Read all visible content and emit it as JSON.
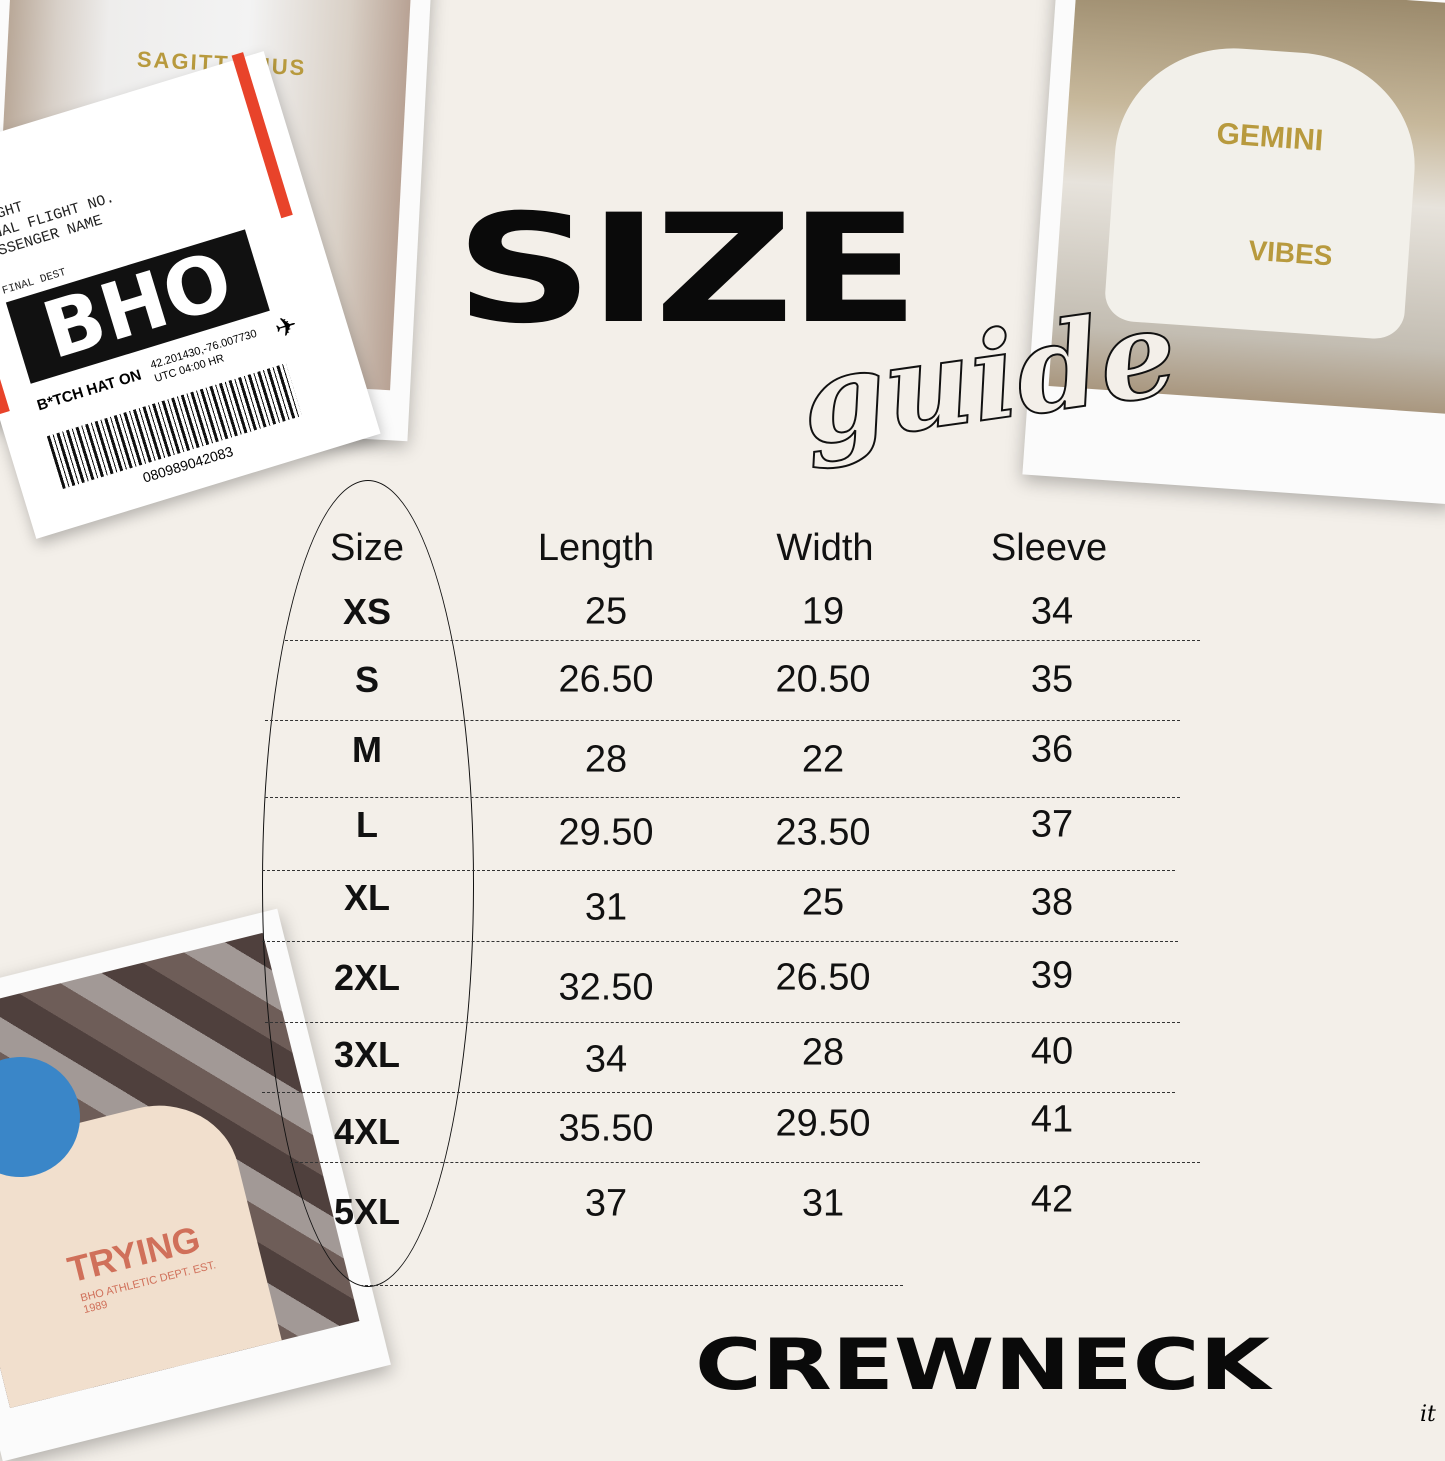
{
  "header": {
    "title_main": "SIZE",
    "title_script": "guide"
  },
  "footer": {
    "product": "CREWNECK",
    "signature": "it"
  },
  "table": {
    "columns": [
      "Size",
      "Length",
      "Width",
      "Sleeve"
    ],
    "rows": [
      {
        "size": "XS",
        "length": "25",
        "width": "19",
        "sleeve": "34"
      },
      {
        "size": "S",
        "length": "26.50",
        "width": "20.50",
        "sleeve": "35"
      },
      {
        "size": "M",
        "length": "28",
        "width": "22",
        "sleeve": "36"
      },
      {
        "size": "L",
        "length": "29.50",
        "width": "23.50",
        "sleeve": "37"
      },
      {
        "size": "XL",
        "length": "31",
        "width": "25",
        "sleeve": "38"
      },
      {
        "size": "2XL",
        "length": "32.50",
        "width": "26.50",
        "sleeve": "39"
      },
      {
        "size": "3XL",
        "length": "34",
        "width": "28",
        "sleeve": "40"
      },
      {
        "size": "4XL",
        "length": "35.50",
        "width": "29.50",
        "sleeve": "41"
      },
      {
        "size": "5XL",
        "length": "37",
        "width": "31",
        "sleeve": "42"
      }
    ]
  },
  "ticket": {
    "line1": "WEIGHT",
    "line2": "FINAL FLIGHT NO.",
    "line3": "PASSENGER NAME",
    "dest_label": "FINAL DEST",
    "code": "BHO",
    "name": "B*TCH HAT ON",
    "coords": "42.201430,-76.007730",
    "utc": "UTC 04:00 HR",
    "barcode": "080989042083"
  },
  "photos": {
    "top_left_print": "SAGITTARIUS",
    "top_right_print_top": "GEMINI",
    "top_right_print_bottom": "VIBES",
    "bottom_left_print": "TRYING",
    "bottom_left_sub": "BHO ATHLETIC DEPT. EST. 1989"
  },
  "colors": {
    "background": "#f3efe9",
    "ticket_accent": "#e8432a",
    "print_gold": "#b89a3e",
    "print_rust": "#d0705a"
  }
}
